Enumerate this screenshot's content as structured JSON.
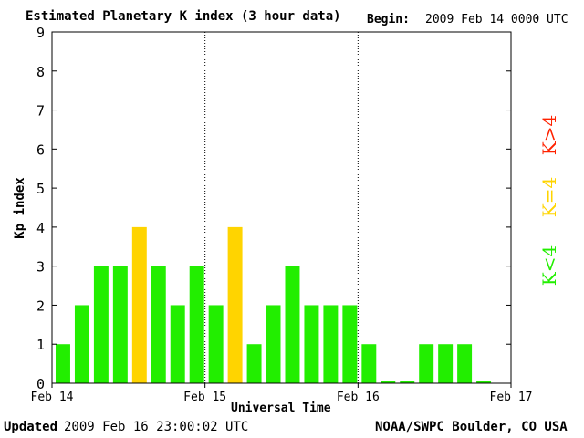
{
  "header": {
    "title": "Estimated Planetary K index (3 hour data)",
    "begin_label": "Begin:",
    "begin_value": "2009 Feb 14 0000 UTC"
  },
  "footer": {
    "updated_label": "Updated",
    "updated_value": "2009 Feb 16 23:00:02 UTC",
    "credit": "NOAA/SWPC Boulder, CO USA"
  },
  "legend": {
    "low": "K<4",
    "equal": "K=4",
    "high": "K>4"
  },
  "colors": {
    "low": "#22ee00",
    "equal": "#ffd400",
    "high": "#ff2200"
  },
  "chart_data": {
    "type": "bar",
    "title": "Estimated Planetary K index (3 hour data)",
    "xlabel": "Universal Time",
    "ylabel": "Kp index",
    "ylim": [
      0,
      9
    ],
    "yticks": [
      "0",
      "1",
      "2",
      "3",
      "4",
      "5",
      "6",
      "7",
      "8",
      "9"
    ],
    "xticks": [
      "Feb 14",
      "Feb 15",
      "Feb 16",
      "Feb 17"
    ],
    "interval_hours": 3,
    "values": [
      1,
      2,
      3,
      3,
      4,
      3,
      2,
      3,
      2,
      4,
      1,
      2,
      3,
      2,
      2,
      2,
      1,
      0.05,
      0.05,
      1,
      1,
      1,
      0.05
    ],
    "grid": false,
    "day_separators": true
  }
}
